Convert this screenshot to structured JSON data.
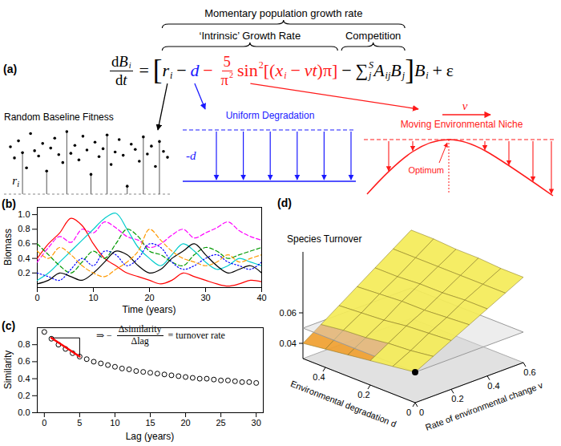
{
  "equation_panel": {
    "panel_label": "(a)",
    "braces": [
      {
        "label": "Momentary population growth rate",
        "groups": [
          "intrinsic",
          "competition"
        ]
      },
      {
        "label": "‘Intrinsic’ Growth Rate",
        "groups": [
          "intrinsic"
        ]
      },
      {
        "label": "Competition",
        "groups": [
          "competition"
        ]
      }
    ],
    "equation": [
      {
        "frac": [
          [
            {
              "text": "d",
              "upright": true
            },
            {
              "text": "B",
              "sub": "i"
            }
          ],
          [
            {
              "text": "d",
              "upright": true
            },
            {
              "text": "t"
            }
          ]
        ]
      },
      {
        "text": "="
      },
      {
        "text": "["
      },
      {
        "text": "r",
        "sub": "i",
        "group": "intrinsic",
        "inset": {
          "type": "points",
          "title": "Random Baseline Fitness",
          "label": {
            "text": "r",
            "sub": "i"
          },
          "points": [
            {
              "y": 0.72
            },
            {
              "y": 0.55
            },
            {
              "y": 0.81
            },
            {
              "y": 0.63,
              "stem": true
            },
            {
              "y": 0.4
            },
            {
              "y": 0.92
            },
            {
              "y": 0.66
            },
            {
              "y": 0.58
            },
            {
              "y": 0.77
            },
            {
              "y": 0.35,
              "stem": true
            },
            {
              "y": 0.7
            },
            {
              "y": 0.85
            },
            {
              "y": 0.6
            },
            {
              "y": 0.48
            },
            {
              "y": 0.95,
              "stem": true
            },
            {
              "y": 0.62
            },
            {
              "y": 0.74
            },
            {
              "y": 0.52
            },
            {
              "y": 0.88
            },
            {
              "y": 0.67
            },
            {
              "y": 0.3,
              "stem": true
            },
            {
              "y": 0.79
            },
            {
              "y": 0.57
            },
            {
              "y": 0.69
            },
            {
              "y": 0.9,
              "stem": true
            },
            {
              "y": 0.45
            },
            {
              "y": 0.64
            },
            {
              "y": 0.83
            },
            {
              "y": 0.59
            },
            {
              "y": 0.12,
              "stem": true
            },
            {
              "y": 0.76
            },
            {
              "y": 0.68
            },
            {
              "y": 0.5
            },
            {
              "y": 0.87,
              "stem": true
            },
            {
              "y": 0.61
            },
            {
              "y": 0.73
            },
            {
              "y": 0.42
            },
            {
              "y": 0.8,
              "stem": true
            },
            {
              "y": 0.65
            },
            {
              "y": 0.56
            }
          ]
        }
      },
      {
        "text": "−",
        "group": "intrinsic"
      },
      {
        "text": "d",
        "color": "#1a1aff",
        "group": "intrinsic",
        "inset": {
          "type": "degradation",
          "title": "Uniform Degradation",
          "label": {
            "text": "-d"
          },
          "color": "#1a1aff"
        }
      },
      {
        "text": "−",
        "color": "#ff1a1a",
        "group": "intrinsic"
      },
      {
        "frac": [
          [
            {
              "text": "5"
            }
          ],
          [
            {
              "text": "π",
              "sup": "2"
            }
          ]
        ],
        "color": "#ff1a1a",
        "group": "intrinsic"
      },
      {
        "text": "sin",
        "sup": "2",
        "upright": true,
        "color": "#ff1a1a",
        "group": "intrinsic",
        "inset": {
          "type": "niche",
          "title": "Moving Environmental Niche",
          "label": {
            "text": "v"
          },
          "annotation": "Optimum",
          "color": "#ff1a1a"
        }
      },
      {
        "text": "[(",
        "color": "#ff1a1a",
        "group": "intrinsic"
      },
      {
        "text": "x",
        "sub": "i",
        "color": "#ff1a1a",
        "group": "intrinsic"
      },
      {
        "text": "−",
        "color": "#ff1a1a",
        "group": "intrinsic"
      },
      {
        "text": "vt",
        "color": "#ff1a1a",
        "group": "intrinsic"
      },
      {
        "text": ")π]",
        "color": "#ff1a1a",
        "group": "intrinsic"
      },
      {
        "text": "−",
        "group": "competition"
      },
      {
        "text": "∑",
        "sub": "j",
        "sup": "S",
        "group": "competition"
      },
      {
        "text": "A",
        "sub": "ij",
        "group": "competition"
      },
      {
        "text": "B",
        "sub": "j",
        "group": "competition"
      },
      {
        "text": "]"
      },
      {
        "text": "B",
        "sub": "i"
      },
      {
        "text": "+"
      },
      {
        "text": "ε"
      }
    ]
  },
  "chart_data": [
    {
      "type": "line",
      "panel_label": "(b)",
      "xlabel": "Time (years)",
      "ylabel": "Biomass",
      "x": [
        0,
        2,
        4,
        6,
        8,
        10,
        12,
        14,
        16,
        18,
        20,
        22,
        24,
        26,
        28,
        30,
        32,
        34,
        36,
        38,
        40
      ],
      "xlim": [
        0,
        40
      ],
      "ylim": [
        0,
        1.1
      ],
      "xticks": [
        0,
        10,
        20,
        30,
        40
      ],
      "yticks": [
        0.2,
        0.4,
        0.6,
        0.8,
        {
          "value": 1,
          "label": "1.0"
        }
      ],
      "series": [
        {
          "color": "#ff00ff",
          "line_style": "dashed",
          "values": [
            0.35,
            0.55,
            0.7,
            0.62,
            0.8,
            0.75,
            0.9,
            0.82,
            0.7,
            0.65,
            0.55,
            0.6,
            0.72,
            0.8,
            0.68,
            0.75,
            0.82,
            0.9,
            0.78,
            0.7,
            0.65
          ]
        },
        {
          "color": "#ff0000",
          "line_style": "solid",
          "values": [
            0.4,
            0.6,
            0.75,
            0.95,
            0.85,
            0.6,
            0.4,
            0.3,
            0.2,
            0.15,
            0.1,
            0.05,
            0.1,
            0.2,
            0.15,
            0.1,
            0.05,
            0.02,
            0.05,
            0.1,
            0.08
          ]
        },
        {
          "color": "#00cccc",
          "line_style": "solid",
          "values": [
            0.1,
            0.2,
            0.35,
            0.5,
            0.65,
            0.8,
            0.95,
            1.02,
            0.8,
            0.55,
            0.4,
            0.3,
            0.45,
            0.6,
            0.5,
            0.35,
            0.25,
            0.3,
            0.4,
            0.35,
            0.3
          ]
        },
        {
          "color": "#009900",
          "line_style": "dashed",
          "values": [
            0.6,
            0.45,
            0.3,
            0.2,
            0.35,
            0.5,
            0.4,
            0.6,
            0.8,
            0.7,
            0.5,
            0.45,
            0.35,
            0.3,
            0.45,
            0.55,
            0.5,
            0.4,
            0.45,
            0.5,
            0.55
          ]
        },
        {
          "color": "#0000ff",
          "line_style": "dotted",
          "values": [
            0.2,
            0.15,
            0.1,
            0.25,
            0.4,
            0.3,
            0.5,
            0.45,
            0.3,
            0.4,
            0.6,
            0.55,
            0.35,
            0.25,
            0.3,
            0.4,
            0.45,
            0.35,
            0.3,
            0.25,
            0.35
          ]
        },
        {
          "color": "#000000",
          "line_style": "solid",
          "values": [
            0.05,
            0.1,
            0.2,
            0.15,
            0.1,
            0.2,
            0.35,
            0.5,
            0.45,
            0.3,
            0.2,
            0.25,
            0.4,
            0.5,
            0.6,
            0.45,
            0.3,
            0.2,
            0.25,
            0.3,
            0.2
          ]
        },
        {
          "color": "#ff9900",
          "line_style": "dashed",
          "values": [
            0.5,
            0.4,
            0.55,
            0.45,
            0.3,
            0.2,
            0.15,
            0.25,
            0.35,
            0.5,
            0.8,
            0.65,
            0.5,
            0.4,
            0.35,
            0.3,
            0.35,
            0.45,
            0.35,
            0.4,
            0.45
          ]
        }
      ]
    },
    {
      "type": "scatter",
      "panel_label": "(c)",
      "xlabel": "Lag (years)",
      "ylabel": "Similarity",
      "xlim": [
        -1,
        31
      ],
      "ylim": [
        0,
        1
      ],
      "xticks": [
        0,
        5,
        10,
        15,
        20,
        25,
        30
      ],
      "yticks": [
        {
          "value": 0,
          "label": "0.0"
        },
        0.2,
        0.4,
        0.6,
        0.8
      ],
      "series": [
        {
          "type": "scatter",
          "marker": "circle",
          "color": "#000000",
          "x": [
            0,
            1,
            2,
            3,
            4,
            5,
            6,
            7,
            8,
            9,
            10,
            11,
            12,
            13,
            14,
            15,
            16,
            17,
            18,
            19,
            20,
            21,
            22,
            23,
            24,
            25,
            26,
            27,
            28,
            29,
            30
          ],
          "values": [
            0.95,
            0.87,
            0.8,
            0.75,
            0.7,
            0.66,
            0.63,
            0.6,
            0.58,
            0.56,
            0.54,
            0.52,
            0.51,
            0.49,
            0.48,
            0.47,
            0.46,
            0.45,
            0.44,
            0.43,
            0.42,
            0.41,
            0.4,
            0.4,
            0.39,
            0.38,
            0.38,
            0.37,
            0.36,
            0.36,
            0.35
          ]
        },
        {
          "type": "line",
          "color": "#ff0000",
          "x": [
            1,
            5
          ],
          "values": [
            0.88,
            0.66
          ]
        }
      ],
      "annotation": {
        "prefix": "⇒ −",
        "numerator": "Δsimilarity",
        "denominator": "Δlag",
        "suffix": "= turnover rate"
      }
    },
    {
      "type": "surface",
      "panel_label": "(d)",
      "zlabel": "Species Turnover",
      "xlabel": "Rate of environmental change v",
      "ylabel": "Environmental degradation d",
      "x": [
        0,
        0.1,
        0.2,
        0.3,
        0.4,
        0.5,
        0.6
      ],
      "y": [
        0,
        0.1,
        0.2,
        0.3,
        0.4,
        0.5
      ],
      "z": [
        [
          0.05,
          0.056,
          0.062,
          0.068,
          0.074,
          0.08,
          0.086
        ],
        [
          0.048,
          0.054,
          0.061,
          0.067,
          0.074,
          0.08,
          0.086
        ],
        [
          0.046,
          0.053,
          0.06,
          0.066,
          0.073,
          0.08,
          0.087
        ],
        [
          0.044,
          0.051,
          0.058,
          0.066,
          0.073,
          0.08,
          0.087
        ],
        [
          0.042,
          0.05,
          0.057,
          0.065,
          0.072,
          0.08,
          0.088
        ],
        [
          0.04,
          0.048,
          0.056,
          0.064,
          0.072,
          0.08,
          0.088
        ]
      ],
      "xlim": [
        0,
        0.6
      ],
      "ylim": [
        0,
        0.5
      ],
      "zlim": [
        0.03,
        0.1
      ],
      "xticks": [
        0,
        0.2,
        0.4,
        0.6
      ],
      "yticks": [
        0,
        0.2,
        0.4
      ],
      "zticks": [
        0.04,
        0.06
      ]
    }
  ]
}
